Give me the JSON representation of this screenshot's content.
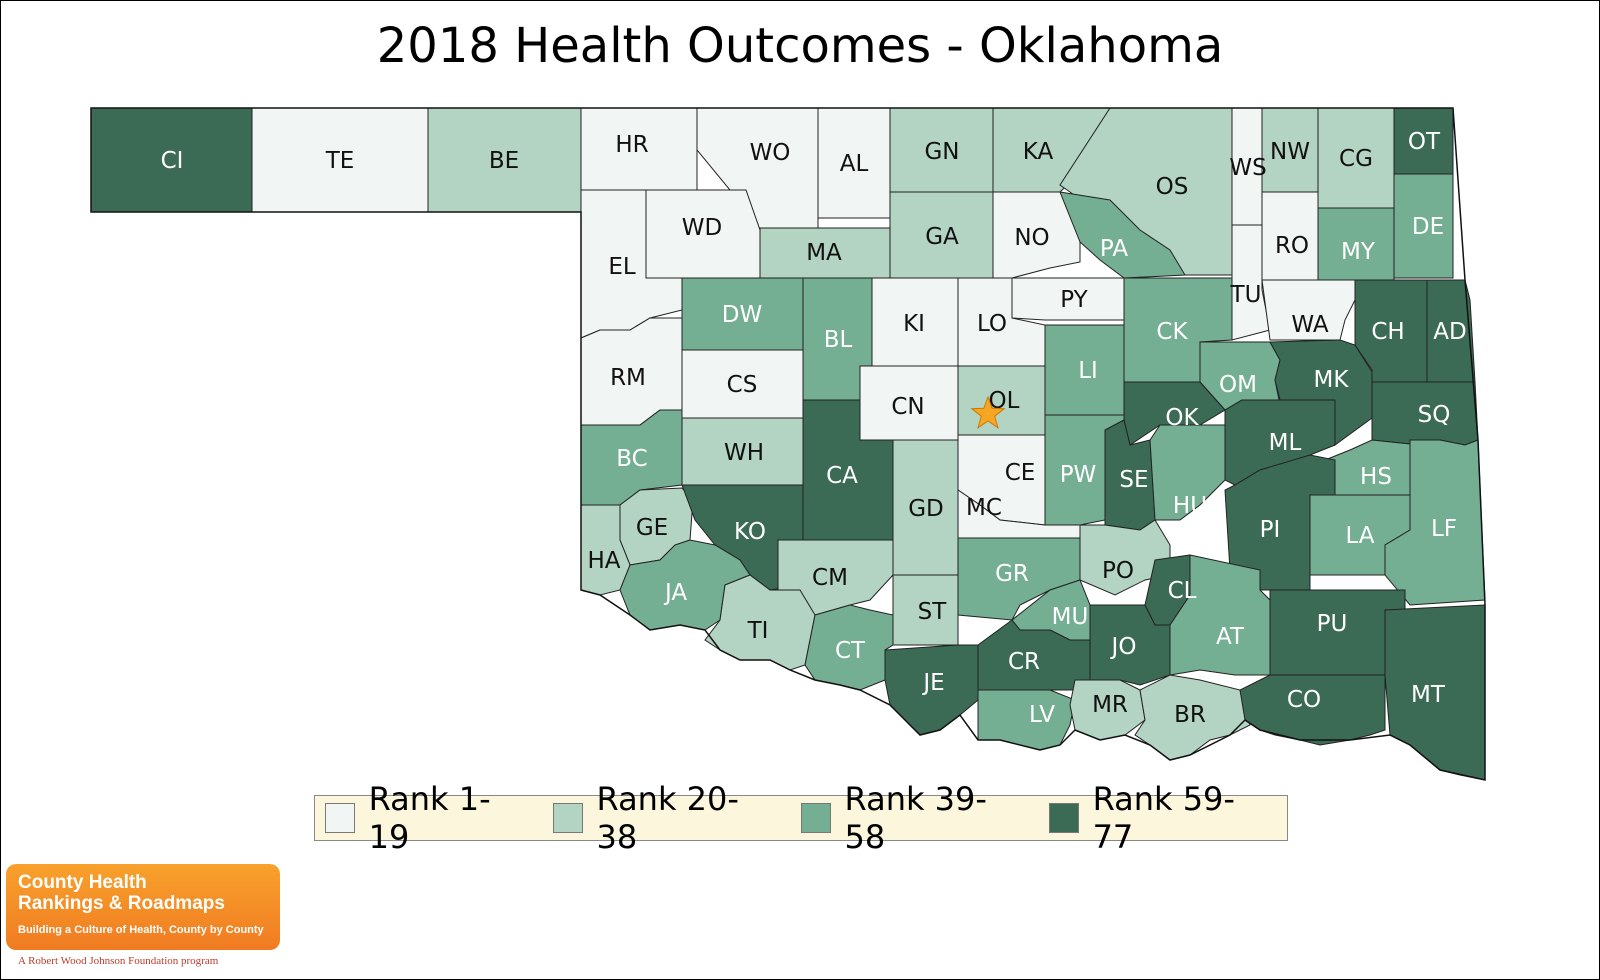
{
  "title": "2018 Health Outcomes - Oklahoma",
  "colors": {
    "r1": "#f1f5f3",
    "r2": "#b3d3c3",
    "r3": "#74ae93",
    "r4": "#3c6b55",
    "border": "#222222",
    "star": "#f7a623"
  },
  "legend": [
    {
      "label": "Rank 1-19",
      "color": "#f1f5f3"
    },
    {
      "label": "Rank 20-38",
      "color": "#b3d3c3"
    },
    {
      "label": "Rank 39-58",
      "color": "#74ae93"
    },
    {
      "label": "Rank 59-77",
      "color": "#3c6b55"
    }
  ],
  "counties": [
    {
      "code": "CI",
      "rank_group": 4
    },
    {
      "code": "TE",
      "rank_group": 1
    },
    {
      "code": "BE",
      "rank_group": 2
    },
    {
      "code": "HR",
      "rank_group": 1
    },
    {
      "code": "WO",
      "rank_group": 1
    },
    {
      "code": "AL",
      "rank_group": 1
    },
    {
      "code": "GN",
      "rank_group": 2
    },
    {
      "code": "KA",
      "rank_group": 2
    },
    {
      "code": "OS",
      "rank_group": 2
    },
    {
      "code": "WS",
      "rank_group": 1
    },
    {
      "code": "NW",
      "rank_group": 2
    },
    {
      "code": "CG",
      "rank_group": 2
    },
    {
      "code": "OT",
      "rank_group": 4
    },
    {
      "code": "WD",
      "rank_group": 1
    },
    {
      "code": "EL",
      "rank_group": 1
    },
    {
      "code": "MA",
      "rank_group": 2
    },
    {
      "code": "GA",
      "rank_group": 2
    },
    {
      "code": "NO",
      "rank_group": 1
    },
    {
      "code": "PA",
      "rank_group": 3
    },
    {
      "code": "RO",
      "rank_group": 1
    },
    {
      "code": "MY",
      "rank_group": 3
    },
    {
      "code": "DE",
      "rank_group": 3
    },
    {
      "code": "DW",
      "rank_group": 3
    },
    {
      "code": "BL",
      "rank_group": 3
    },
    {
      "code": "KI",
      "rank_group": 1
    },
    {
      "code": "LO",
      "rank_group": 1
    },
    {
      "code": "PY",
      "rank_group": 1
    },
    {
      "code": "TU",
      "rank_group": 1
    },
    {
      "code": "WA",
      "rank_group": 1
    },
    {
      "code": "CH",
      "rank_group": 4
    },
    {
      "code": "AD",
      "rank_group": 4
    },
    {
      "code": "RM",
      "rank_group": 1
    },
    {
      "code": "CS",
      "rank_group": 1
    },
    {
      "code": "CK",
      "rank_group": 3
    },
    {
      "code": "LI",
      "rank_group": 3
    },
    {
      "code": "OM",
      "rank_group": 3
    },
    {
      "code": "MK",
      "rank_group": 4
    },
    {
      "code": "CN",
      "rank_group": 1
    },
    {
      "code": "OL",
      "rank_group": 2
    },
    {
      "code": "OK",
      "rank_group": 4
    },
    {
      "code": "SQ",
      "rank_group": 4
    },
    {
      "code": "BC",
      "rank_group": 3
    },
    {
      "code": "WH",
      "rank_group": 2
    },
    {
      "code": "CA",
      "rank_group": 4
    },
    {
      "code": "ML",
      "rank_group": 4
    },
    {
      "code": "CE",
      "rank_group": 1
    },
    {
      "code": "PW",
      "rank_group": 3
    },
    {
      "code": "SE",
      "rank_group": 4
    },
    {
      "code": "HS",
      "rank_group": 3
    },
    {
      "code": "GE",
      "rank_group": 2
    },
    {
      "code": "KO",
      "rank_group": 4
    },
    {
      "code": "GD",
      "rank_group": 2
    },
    {
      "code": "MC",
      "rank_group": 1
    },
    {
      "code": "HU",
      "rank_group": 3
    },
    {
      "code": "PI",
      "rank_group": 4
    },
    {
      "code": "LA",
      "rank_group": 3
    },
    {
      "code": "LF",
      "rank_group": 3
    },
    {
      "code": "HA",
      "rank_group": 2
    },
    {
      "code": "JA",
      "rank_group": 3
    },
    {
      "code": "CM",
      "rank_group": 2
    },
    {
      "code": "GR",
      "rank_group": 3
    },
    {
      "code": "PO",
      "rank_group": 2
    },
    {
      "code": "CL",
      "rank_group": 4
    },
    {
      "code": "TI",
      "rank_group": 2
    },
    {
      "code": "ST",
      "rank_group": 2
    },
    {
      "code": "MU",
      "rank_group": 3
    },
    {
      "code": "AT",
      "rank_group": 3
    },
    {
      "code": "PU",
      "rank_group": 4
    },
    {
      "code": "CT",
      "rank_group": 3
    },
    {
      "code": "JE",
      "rank_group": 4
    },
    {
      "code": "CR",
      "rank_group": 4
    },
    {
      "code": "JO",
      "rank_group": 4
    },
    {
      "code": "MT",
      "rank_group": 4
    },
    {
      "code": "LV",
      "rank_group": 3
    },
    {
      "code": "MR",
      "rank_group": 2
    },
    {
      "code": "BR",
      "rank_group": 2
    },
    {
      "code": "CO",
      "rank_group": 4
    }
  ],
  "logo": {
    "line1": "County Health",
    "line2": "Rankings & Roadmaps",
    "tagline": "Building a Culture of Health, County by County"
  },
  "program": "A Robert Wood Johnson Foundation program"
}
